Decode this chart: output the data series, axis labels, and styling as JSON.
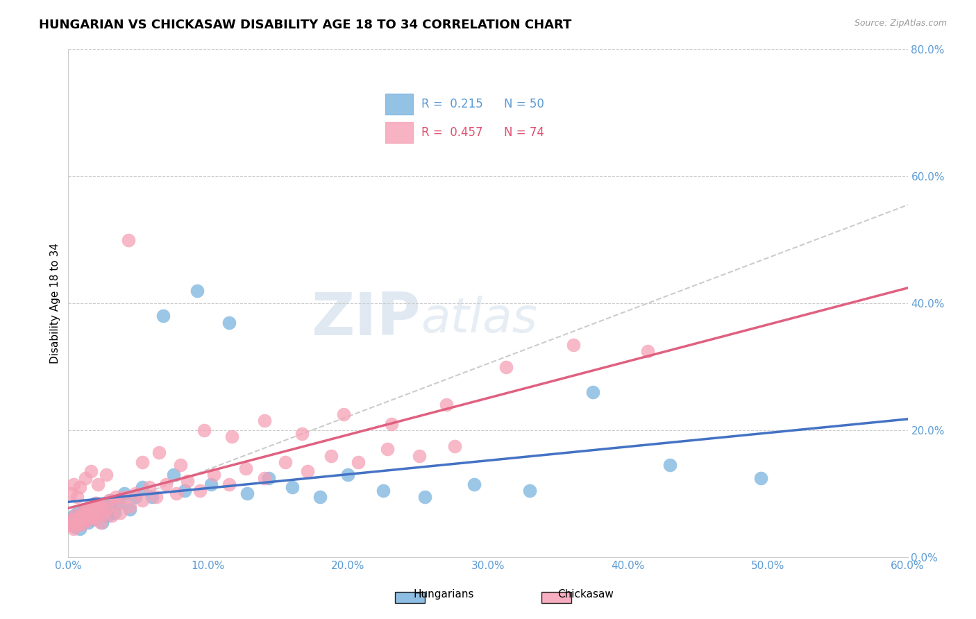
{
  "title": "HUNGARIAN VS CHICKASAW DISABILITY AGE 18 TO 34 CORRELATION CHART",
  "source_text": "Source: ZipAtlas.com",
  "ylabel": "Disability Age 18 to 34",
  "xlim": [
    0.0,
    0.6
  ],
  "ylim": [
    0.0,
    0.8
  ],
  "xtick_labels": [
    "0.0%",
    "10.0%",
    "20.0%",
    "30.0%",
    "40.0%",
    "50.0%",
    "60.0%"
  ],
  "xtick_vals": [
    0.0,
    0.1,
    0.2,
    0.3,
    0.4,
    0.5,
    0.6
  ],
  "ytick_labels": [
    "0.0%",
    "20.0%",
    "40.0%",
    "60.0%",
    "80.0%"
  ],
  "ytick_vals": [
    0.0,
    0.2,
    0.4,
    0.6,
    0.8
  ],
  "hungarian_color": "#7ab3de",
  "chickasaw_color": "#f5a0b5",
  "hungarian_line_color": "#4472c4",
  "chickasaw_line_color": "#e06080",
  "hungarian_R": 0.215,
  "hungarian_N": 50,
  "chickasaw_R": 0.457,
  "chickasaw_N": 74,
  "watermark_text": "ZIPatlas",
  "grid_color": "#cccccc",
  "title_fontsize": 13,
  "axis_label_fontsize": 11,
  "tick_fontsize": 11,
  "tick_color": "#5b9bd5",
  "hungarian_x": [
    0.001,
    0.002,
    0.003,
    0.004,
    0.005,
    0.006,
    0.007,
    0.008,
    0.009,
    0.01,
    0.011,
    0.012,
    0.013,
    0.014,
    0.015,
    0.016,
    0.017,
    0.018,
    0.019,
    0.02,
    0.022,
    0.024,
    0.026,
    0.028,
    0.03,
    0.033,
    0.036,
    0.04,
    0.044,
    0.048,
    0.053,
    0.06,
    0.068,
    0.075,
    0.083,
    0.092,
    0.102,
    0.115,
    0.128,
    0.143,
    0.16,
    0.18,
    0.2,
    0.225,
    0.255,
    0.29,
    0.33,
    0.375,
    0.43,
    0.495
  ],
  "hungarian_y": [
    0.055,
    0.06,
    0.052,
    0.065,
    0.048,
    0.058,
    0.072,
    0.045,
    0.068,
    0.062,
    0.075,
    0.058,
    0.07,
    0.055,
    0.08,
    0.065,
    0.078,
    0.06,
    0.085,
    0.07,
    0.075,
    0.055,
    0.08,
    0.065,
    0.09,
    0.07,
    0.085,
    0.1,
    0.075,
    0.095,
    0.11,
    0.095,
    0.38,
    0.13,
    0.105,
    0.42,
    0.115,
    0.37,
    0.1,
    0.125,
    0.11,
    0.095,
    0.13,
    0.105,
    0.095,
    0.115,
    0.105,
    0.26,
    0.145,
    0.125
  ],
  "chickasaw_x": [
    0.001,
    0.002,
    0.003,
    0.004,
    0.005,
    0.006,
    0.007,
    0.008,
    0.009,
    0.01,
    0.011,
    0.012,
    0.013,
    0.014,
    0.015,
    0.016,
    0.017,
    0.018,
    0.019,
    0.02,
    0.021,
    0.022,
    0.023,
    0.024,
    0.025,
    0.027,
    0.029,
    0.031,
    0.034,
    0.037,
    0.04,
    0.044,
    0.048,
    0.053,
    0.058,
    0.063,
    0.07,
    0.077,
    0.085,
    0.094,
    0.104,
    0.115,
    0.127,
    0.14,
    0.155,
    0.171,
    0.188,
    0.207,
    0.228,
    0.251,
    0.276,
    0.002,
    0.004,
    0.006,
    0.008,
    0.012,
    0.016,
    0.021,
    0.027,
    0.034,
    0.043,
    0.053,
    0.065,
    0.08,
    0.097,
    0.117,
    0.14,
    0.167,
    0.197,
    0.231,
    0.27,
    0.313,
    0.361,
    0.414
  ],
  "chickasaw_y": [
    0.055,
    0.05,
    0.06,
    0.045,
    0.065,
    0.05,
    0.06,
    0.055,
    0.07,
    0.052,
    0.068,
    0.075,
    0.058,
    0.072,
    0.062,
    0.08,
    0.065,
    0.078,
    0.06,
    0.085,
    0.07,
    0.082,
    0.055,
    0.078,
    0.068,
    0.075,
    0.09,
    0.065,
    0.085,
    0.07,
    0.095,
    0.08,
    0.1,
    0.09,
    0.11,
    0.095,
    0.115,
    0.1,
    0.12,
    0.105,
    0.13,
    0.115,
    0.14,
    0.125,
    0.15,
    0.135,
    0.16,
    0.15,
    0.17,
    0.16,
    0.175,
    0.1,
    0.115,
    0.095,
    0.11,
    0.125,
    0.135,
    0.115,
    0.13,
    0.095,
    0.5,
    0.15,
    0.165,
    0.145,
    0.2,
    0.19,
    0.215,
    0.195,
    0.225,
    0.21,
    0.24,
    0.3,
    0.335,
    0.325
  ]
}
